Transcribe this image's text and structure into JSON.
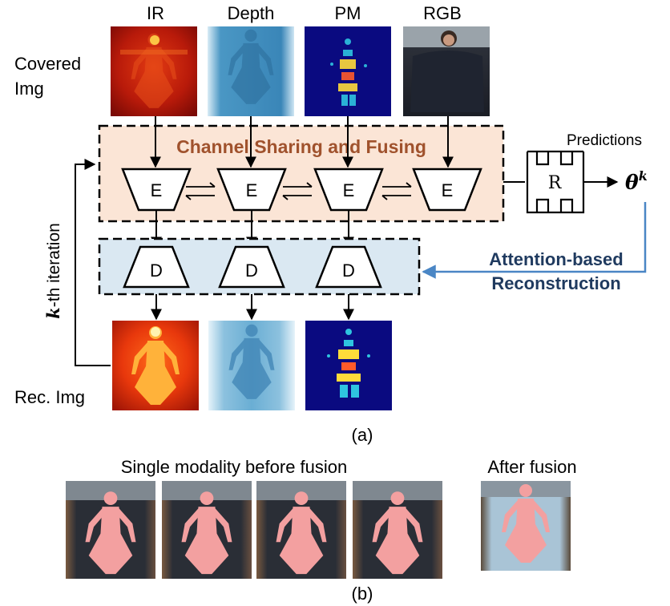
{
  "columns": [
    "IR",
    "Depth",
    "PM",
    "RGB"
  ],
  "row_labels": {
    "covered_line1": "Covered",
    "covered_line2": "Img",
    "reconstructed": "Rec. Img"
  },
  "fusion_box_title": "Channel Sharing and Fusing",
  "encoder_letter": "E",
  "decoder_letter": "D",
  "regressor_letter": "R",
  "predictions_label": "Predictions",
  "theta_base": "θ",
  "theta_sup": "k",
  "attention_line1": "Attention-based",
  "attention_line2": "Reconstruction",
  "iteration_k": "k",
  "iteration_rest": "-th iteration",
  "caption_a": "(a)",
  "caption_b": "(b)",
  "single_modality_title": "Single modality before fusion",
  "after_fusion_title": "After fusion",
  "colors": {
    "fusion_box_fill": "#fbe5d6",
    "fusion_title": "#a0522d",
    "recon_box_fill": "#dae8f2",
    "attention_text": "#1f3a5f",
    "attention_arrow": "#4a86c5"
  }
}
